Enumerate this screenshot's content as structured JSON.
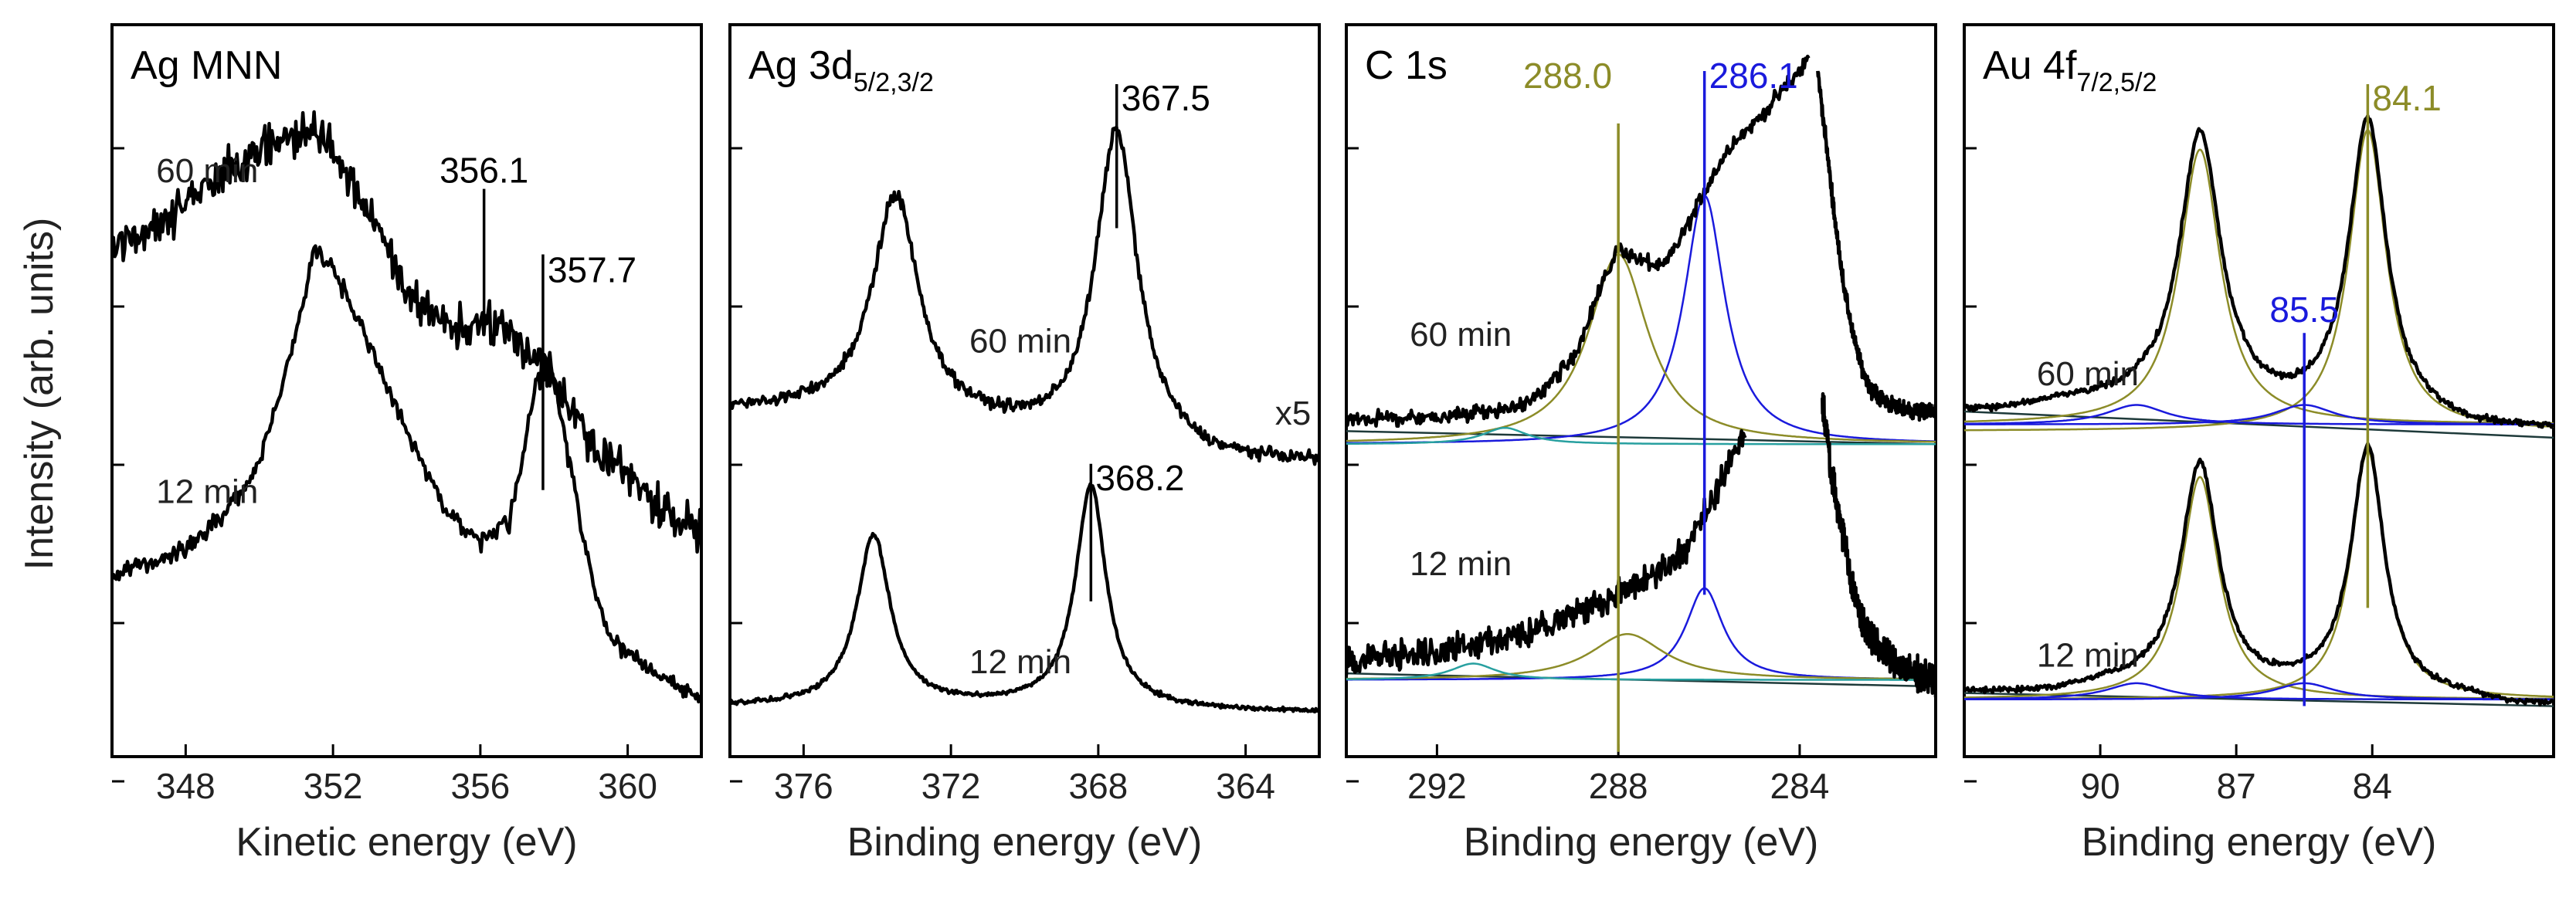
{
  "figure": {
    "ylabel": "Intensity (arb. units)"
  },
  "chart_data": [
    {
      "type": "line",
      "title": "Ag MNN",
      "xlabel": "Kinetic energy (eV)",
      "ylabel": "Intensity (arb. units)",
      "x_reversed": false,
      "xlim": [
        346,
        362
      ],
      "ylim": [
        0,
        100
      ],
      "xticks": [
        348,
        352,
        356,
        360
      ],
      "series": [
        {
          "name": "60 min",
          "color": "#000000",
          "noise": 3.2,
          "x": [
            346,
            347,
            348,
            349,
            350,
            351,
            351.5,
            352,
            353,
            354,
            355,
            356,
            356.5,
            357,
            357.7,
            358,
            359,
            360,
            361,
            362
          ],
          "y": [
            73,
            76,
            80,
            84,
            88,
            90,
            91,
            88,
            78,
            66,
            62,
            60,
            62,
            58,
            56,
            52,
            44,
            38,
            33,
            30
          ]
        },
        {
          "name": "12 min",
          "color": "#000000",
          "noise": 1.4,
          "x": [
            346,
            347,
            348,
            349,
            350,
            351,
            351.5,
            352,
            353,
            354,
            355,
            356,
            356.8,
            357.5,
            357.9,
            358.5,
            359,
            359.5,
            360,
            361,
            362
          ],
          "y": [
            23,
            25,
            27,
            32,
            40,
            60,
            73,
            70,
            58,
            45,
            33,
            28,
            31,
            52,
            56,
            38,
            23,
            14,
            11,
            7,
            4
          ]
        }
      ],
      "annotations": [
        {
          "label": "356.1",
          "x": 356.1,
          "y_top": 82,
          "y_bottom": 62,
          "color": "#000000"
        },
        {
          "label": "357.7",
          "x": 357.7,
          "y_top": 72,
          "y_bottom": 36,
          "color": "#000000"
        }
      ],
      "series_labels": [
        {
          "text": "60 min",
          "x": 347.2,
          "y": 83
        },
        {
          "text": "12 min",
          "x": 347.2,
          "y": 34
        }
      ]
    },
    {
      "type": "line",
      "title": "Ag 3d",
      "title_sub": "5/2,3/2",
      "xlabel": "Binding energy (eV)",
      "ylabel": "Intensity (arb. units)",
      "x_reversed": true,
      "xlim": [
        378,
        362
      ],
      "ylim": [
        0,
        100
      ],
      "xticks": [
        376,
        372,
        368,
        364
      ],
      "series": [
        {
          "name": "60 min",
          "color": "#000000",
          "noise": 0.9,
          "peaks": [
            {
              "c": 373.5,
              "w": 0.75,
              "h": 33
            },
            {
              "c": 367.5,
              "w": 0.7,
              "h": 49
            }
          ],
          "baseline": [
            48,
            48,
            48,
            48,
            48,
            47,
            46,
            45,
            44,
            43,
            42,
            41,
            41,
            40,
            40,
            40,
            40
          ],
          "x_start": 378,
          "x_end": 362
        },
        {
          "name": "12 min",
          "color": "#000000",
          "noise": 0.35,
          "peaks": [
            {
              "c": 374.1,
              "w": 0.55,
              "h": 26
            },
            {
              "c": 368.2,
              "w": 0.5,
              "h": 34
            }
          ],
          "baseline": [
            3,
            3,
            3,
            3,
            3,
            3,
            3,
            3,
            3,
            2.8,
            2.6,
            2.5,
            2.4,
            2.3,
            2.2,
            2.1,
            2
          ],
          "x_start": 378,
          "x_end": 362
        }
      ],
      "annotations": [
        {
          "label": "367.5",
          "x": 367.5,
          "y_top": 98,
          "y_bottom": 76,
          "color": "#000000"
        },
        {
          "label": "368.2",
          "x": 368.2,
          "y_top": 40,
          "y_bottom": 19,
          "color": "#000000"
        }
      ],
      "series_labels": [
        {
          "text": "60 min",
          "x": 371.5,
          "y": 57
        },
        {
          "text": "12 min",
          "x": 371.5,
          "y": 8
        },
        {
          "text": "x5",
          "x": 363.2,
          "y": 46
        }
      ]
    },
    {
      "type": "line",
      "title": "C 1s",
      "xlabel": "Binding energy (eV)",
      "ylabel": "Intensity (arb. units)",
      "x_reversed": true,
      "xlim": [
        294,
        281
      ],
      "ylim": [
        0,
        100
      ],
      "xticks": [
        292,
        288,
        284
      ],
      "series": [
        {
          "name": "60 min",
          "color": "#000000",
          "noise": 1.2,
          "x": [
            294,
            292,
            290,
            289,
            288.5,
            288,
            287.5,
            287,
            286.5,
            286,
            285.5,
            285,
            284.5,
            284,
            283.8
          ],
          "y": [
            47,
            47,
            49,
            56,
            65,
            73,
            71,
            70,
            76,
            83,
            89,
            92,
            96,
            100,
            102
          ],
          "x2": [
            283.6,
            283.4,
            283.2,
            283,
            282.8,
            282.6,
            282.4,
            282,
            281.5,
            281
          ],
          "y2": [
            100,
            88,
            76,
            66,
            59,
            54,
            51,
            49,
            48,
            48
          ]
        },
        {
          "name": "12 min",
          "color": "#000000",
          "noise": 2.3,
          "x": [
            294,
            293,
            292,
            291,
            290,
            289,
            288,
            287.5,
            287,
            286.5,
            286,
            285.5,
            285.2
          ],
          "y": [
            10,
            11,
            11,
            13,
            14,
            17,
            20,
            22,
            24,
            27,
            33,
            41,
            45
          ],
          "x2": [
            283.5,
            283.3,
            283,
            282.8,
            282.5,
            282,
            281.5,
            281
          ],
          "y2": [
            50,
            38,
            28,
            20,
            14,
            10,
            8,
            7
          ]
        }
      ],
      "fits": [
        {
          "color": "#1a1adc",
          "c": 286.1,
          "w": 0.55,
          "h": 38,
          "base_y": 43
        },
        {
          "color": "#8c8c28",
          "c": 288.0,
          "w": 0.8,
          "h": 29,
          "base_y": 43
        },
        {
          "color": "#28a0a0",
          "c": 290.5,
          "w": 0.6,
          "h": 2.5,
          "base_y": 43
        },
        {
          "color": "#1a1adc",
          "c": 286.1,
          "w": 0.5,
          "h": 14,
          "base_y": 7
        },
        {
          "color": "#8c8c28",
          "c": 287.8,
          "w": 1.0,
          "h": 7,
          "base_y": 7
        },
        {
          "color": "#28a0a0",
          "c": 291.2,
          "w": 0.6,
          "h": 2.5,
          "base_y": 7
        }
      ],
      "baselines": [
        {
          "color": "#1e3a3a",
          "y_left": 45,
          "y_right": 43
        },
        {
          "color": "#1e3a3a",
          "y_left": 8,
          "y_right": 6
        }
      ],
      "annotations": [
        {
          "label": "288.0",
          "x": 288.0,
          "y_top": 92,
          "y_bottom": -4,
          "color": "#8c8c28"
        },
        {
          "label": "286.1",
          "x": 286.1,
          "y_top": 100,
          "y_bottom": 20,
          "color": "#1a1adc"
        }
      ],
      "series_labels": [
        {
          "text": "60 min",
          "x": 292.6,
          "y": 58
        },
        {
          "text": "12 min",
          "x": 292.6,
          "y": 23
        }
      ]
    },
    {
      "type": "line",
      "title": "Au 4f",
      "title_sub": "7/2,5/2",
      "xlabel": "Binding energy (eV)",
      "ylabel": "Intensity (arb. units)",
      "x_reversed": true,
      "xlim": [
        93,
        80
      ],
      "ylim": [
        0,
        100
      ],
      "xticks": [
        90,
        87,
        84
      ],
      "series": [
        {
          "name": "60 min",
          "color": "#000000",
          "noise": 0.5,
          "peaks": [
            {
              "c": 87.8,
              "w": 0.55,
              "h": 42
            },
            {
              "c": 84.1,
              "w": 0.5,
              "h": 46
            }
          ],
          "baseline": [
            48,
            48,
            49,
            49,
            49,
            48,
            48,
            47,
            47,
            46,
            46,
            45,
            45,
            45
          ],
          "x_start": 93,
          "x_end": 80
        },
        {
          "name": "12 min",
          "color": "#000000",
          "noise": 0.4,
          "peaks": [
            {
              "c": 87.8,
              "w": 0.5,
              "h": 34
            },
            {
              "c": 84.1,
              "w": 0.45,
              "h": 38
            }
          ],
          "baseline": [
            5,
            5,
            5,
            6,
            6,
            6,
            5,
            5,
            5,
            4,
            4,
            4,
            3,
            3
          ],
          "x_start": 93,
          "x_end": 80
        }
      ],
      "fits": [
        {
          "color": "#8c8c28",
          "c": 87.8,
          "w": 0.55,
          "h": 42,
          "base_y": 46
        },
        {
          "color": "#8c8c28",
          "c": 84.1,
          "w": 0.5,
          "h": 46,
          "base_y": 45
        },
        {
          "color": "#1a1adc",
          "c": 85.5,
          "w": 0.8,
          "h": 3,
          "base_y": 46
        },
        {
          "color": "#1a1adc",
          "c": 89.2,
          "w": 0.8,
          "h": 3,
          "base_y": 46
        },
        {
          "color": "#8c8c28",
          "c": 87.8,
          "w": 0.5,
          "h": 34,
          "base_y": 4
        },
        {
          "color": "#8c8c28",
          "c": 84.1,
          "w": 0.45,
          "h": 38,
          "base_y": 4
        },
        {
          "color": "#1a1adc",
          "c": 85.5,
          "w": 0.8,
          "h": 2.5,
          "base_y": 4
        },
        {
          "color": "#1a1adc",
          "c": 89.2,
          "w": 0.8,
          "h": 2.5,
          "base_y": 4
        }
      ],
      "baselines": [
        {
          "color": "#1e3a3a",
          "y_left": 48,
          "y_right": 44
        },
        {
          "color": "#1e3a3a",
          "y_left": 5,
          "y_right": 3
        }
      ],
      "annotations": [
        {
          "label": "84.1",
          "x": 84.1,
          "y_top": 98,
          "y_bottom": 18,
          "color": "#8c8c28"
        },
        {
          "label": "85.5",
          "x": 85.5,
          "y_top": 60,
          "y_bottom": 3,
          "color": "#1a1adc"
        }
      ],
      "series_labels": [
        {
          "text": "60 min",
          "x": 91.4,
          "y": 52
        },
        {
          "text": "12 min",
          "x": 91.4,
          "y": 9
        }
      ]
    }
  ]
}
